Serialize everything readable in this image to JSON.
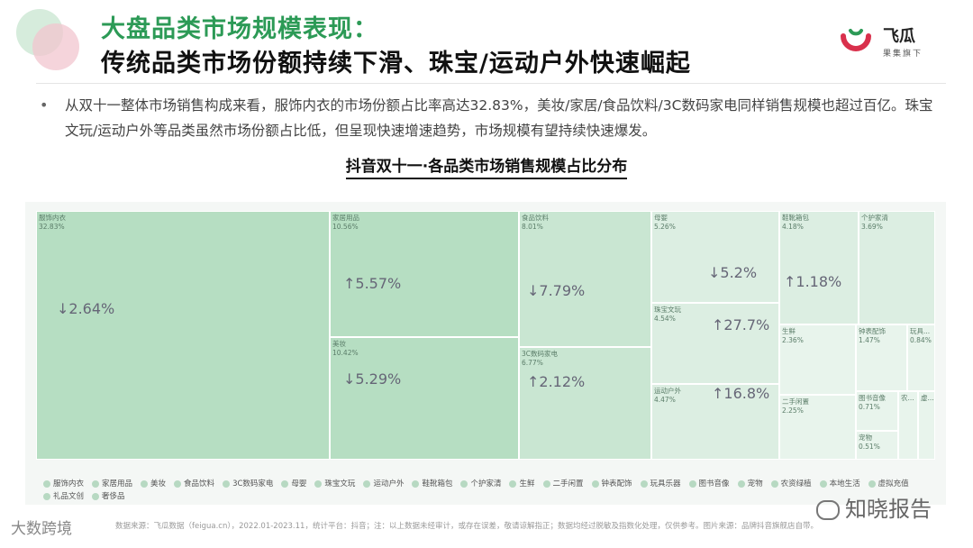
{
  "header": {
    "title_line1": "大盘品类市场规模表现：",
    "title_line2": "传统品类市场份额持续下滑、珠宝/运动户外快速崛起",
    "logo_name": "飞瓜",
    "logo_sub": "果集旗下"
  },
  "body": {
    "bullet": "•",
    "paragraph": "从双十一整体市场销售构成来看，服饰内衣的市场份额占比率高达32.83%，美妆/家居/食品饮料/3C数码家电同样销售规模也超过百亿。珠宝文玩/运动户外等品类虽然市场份额占比低，但呈现快速增速趋势，市场规模有望持续快速爆发。"
  },
  "chart_title": "抖音双十一·各品类市场销售规模占比分布",
  "chart_data": {
    "type": "treemap",
    "title": "抖音双十一·各品类市场销售规模占比分布",
    "items": [
      {
        "name": "服饰内衣",
        "share": "32.83%",
        "growth": "↓2.64%"
      },
      {
        "name": "家居用品",
        "share": "10.56%",
        "growth": "↑5.57%"
      },
      {
        "name": "美妆",
        "share": "10.42%",
        "growth": "↓5.29%"
      },
      {
        "name": "食品饮料",
        "share": "8.01%",
        "growth": "↓7.79%"
      },
      {
        "name": "3C数码家电",
        "share": "6.77%",
        "growth": "↑2.12%"
      },
      {
        "name": "母婴",
        "share": "5.26%",
        "growth": "↓5.2%"
      },
      {
        "name": "珠宝文玩",
        "share": "4.54%",
        "growth": "↑27.7%"
      },
      {
        "name": "运动户外",
        "share": "4.47%",
        "growth": "↑16.8%"
      },
      {
        "name": "鞋靴箱包",
        "share": "4.18%",
        "growth": "↑1.18%"
      },
      {
        "name": "个护家清",
        "share": "3.69%",
        "growth": ""
      },
      {
        "name": "生鲜",
        "share": "2.36%",
        "growth": ""
      },
      {
        "name": "二手闲置",
        "share": "2.25%",
        "growth": ""
      },
      {
        "name": "钟表配饰",
        "share": "1.47%",
        "growth": ""
      },
      {
        "name": "玩具...",
        "share": "0.84%",
        "growth": ""
      },
      {
        "name": "图书音像",
        "share": "0.71%",
        "growth": ""
      },
      {
        "name": "宠物",
        "share": "0.51%",
        "growth": ""
      },
      {
        "name": "农...",
        "share": "",
        "growth": ""
      },
      {
        "name": "虚...",
        "share": "",
        "growth": ""
      }
    ],
    "legend": [
      "服饰内衣",
      "家居用品",
      "美妆",
      "食品饮料",
      "3C数码家电",
      "母婴",
      "珠宝文玩",
      "运动户外",
      "鞋靴箱包",
      "个护家清",
      "生鲜",
      "二手闲置",
      "钟表配饰",
      "玩具乐器",
      "图书音像",
      "宠物",
      "农资绿植",
      "本地生活",
      "虚拟充值",
      "礼品文创",
      "奢侈品"
    ]
  },
  "colors": {
    "cell_dark": "#b6dec2",
    "cell_mid": "#c9e6d2",
    "cell_light": "#dceee2",
    "cell_pale": "#e8f4ec",
    "title_green": "#2c9a56",
    "logo_red": "#d9304c"
  },
  "footer": {
    "note": "数据来源：飞瓜数据（feigua.cn），2022.01-2023.11，统计平台：抖音；注：以上数据未经审计，或存在误差，敬请谅解指正；数据均经过脱敏及指数化处理，仅供参考。图片来源：品牌抖音旗舰店自带。",
    "watermark_left": "大数跨境",
    "watermark_right": "知晓报告"
  }
}
